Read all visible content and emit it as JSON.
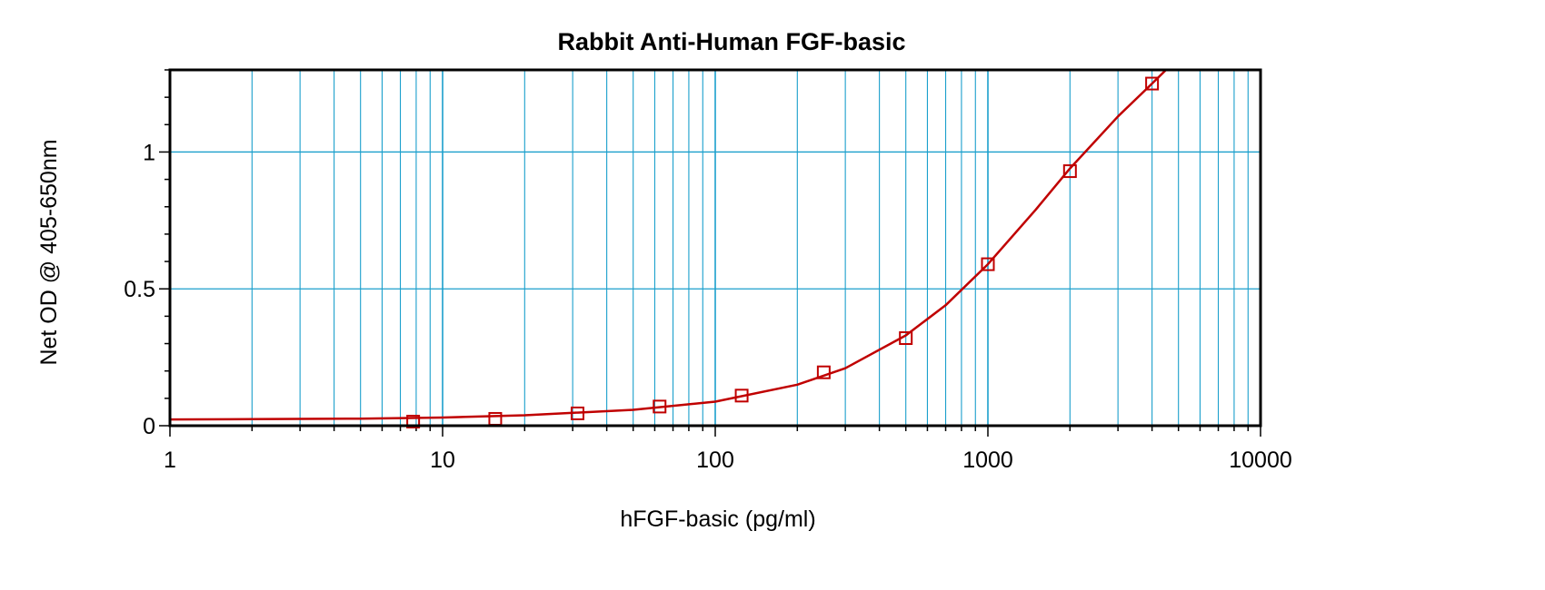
{
  "chart_data": {
    "type": "scatter",
    "title": "Rabbit Anti-Human FGF-basic",
    "xlabel": "hFGF-basic (pg/ml)",
    "ylabel": "Net OD @ 405-650nm",
    "xscale": "log",
    "xlim": [
      1,
      10000
    ],
    "ylim": [
      0,
      1.3
    ],
    "x_ticks": [
      "1",
      "10",
      "100",
      "1000",
      "10000"
    ],
    "y_ticks": [
      "0",
      "0.5",
      "1"
    ],
    "grid": true,
    "legend": "none",
    "series": [
      {
        "marker": "open-square",
        "color": "#c00000",
        "x": [
          7.8,
          15.6,
          31.25,
          62.5,
          125,
          250,
          500,
          1000,
          2000,
          4000
        ],
        "y": [
          0.015,
          0.025,
          0.045,
          0.07,
          0.11,
          0.195,
          0.32,
          0.59,
          0.93,
          1.25
        ]
      }
    ],
    "fit_curve": {
      "color": "#c00000",
      "model": "4PL",
      "x": [
        1,
        2,
        5,
        10,
        20,
        50,
        100,
        200,
        300,
        500,
        700,
        1000,
        1500,
        2000,
        3000,
        4000,
        4500
      ],
      "y": [
        0.023,
        0.024,
        0.026,
        0.03,
        0.038,
        0.058,
        0.088,
        0.15,
        0.21,
        0.33,
        0.44,
        0.59,
        0.79,
        0.94,
        1.13,
        1.25,
        1.3
      ]
    },
    "colors": {
      "grid": "#1a9fcc",
      "axis": "#000000",
      "series": "#c00000"
    }
  }
}
